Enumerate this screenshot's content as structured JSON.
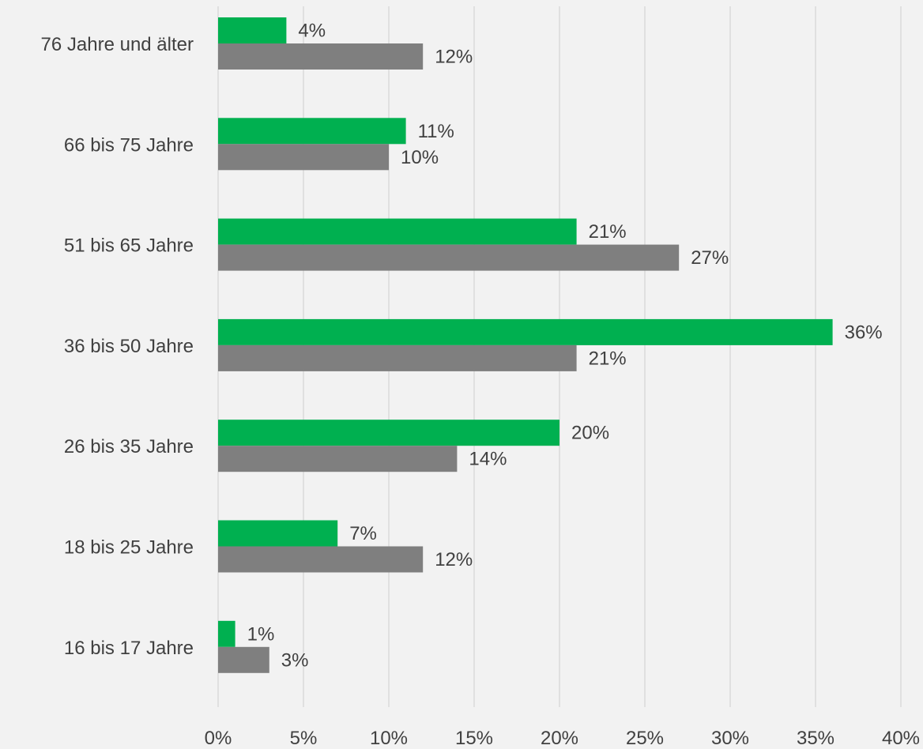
{
  "chart_data": {
    "type": "bar",
    "orientation": "horizontal",
    "categories": [
      "76 Jahre und älter",
      "66 bis 75 Jahre",
      "51 bis 65 Jahre",
      "36 bis 50 Jahre",
      "26 bis 35 Jahre",
      "18 bis 25 Jahre",
      "16 bis 17 Jahre"
    ],
    "series": [
      {
        "color": "#00b050",
        "values": [
          4,
          11,
          21,
          36,
          20,
          7,
          1
        ],
        "labels": [
          "4%",
          "11%",
          "21%",
          "36%",
          "20%",
          "7%",
          "1%"
        ]
      },
      {
        "color": "#7f7f7f",
        "values": [
          12,
          10,
          27,
          21,
          14,
          12,
          3
        ],
        "labels": [
          "12%",
          "10%",
          "27%",
          "21%",
          "14%",
          "12%",
          "3%"
        ]
      }
    ],
    "xlim": [
      0,
      40
    ],
    "xticks": [
      0,
      5,
      10,
      15,
      20,
      25,
      30,
      35,
      40
    ],
    "xtick_labels": [
      "0%",
      "5%",
      "10%",
      "15%",
      "20%",
      "25%",
      "30%",
      "35%",
      "40%"
    ],
    "grid": "vertical",
    "legend": "none",
    "colors": {
      "background": "#f2f2f2",
      "grid": "#d9d9d9",
      "text": "#404040"
    }
  }
}
